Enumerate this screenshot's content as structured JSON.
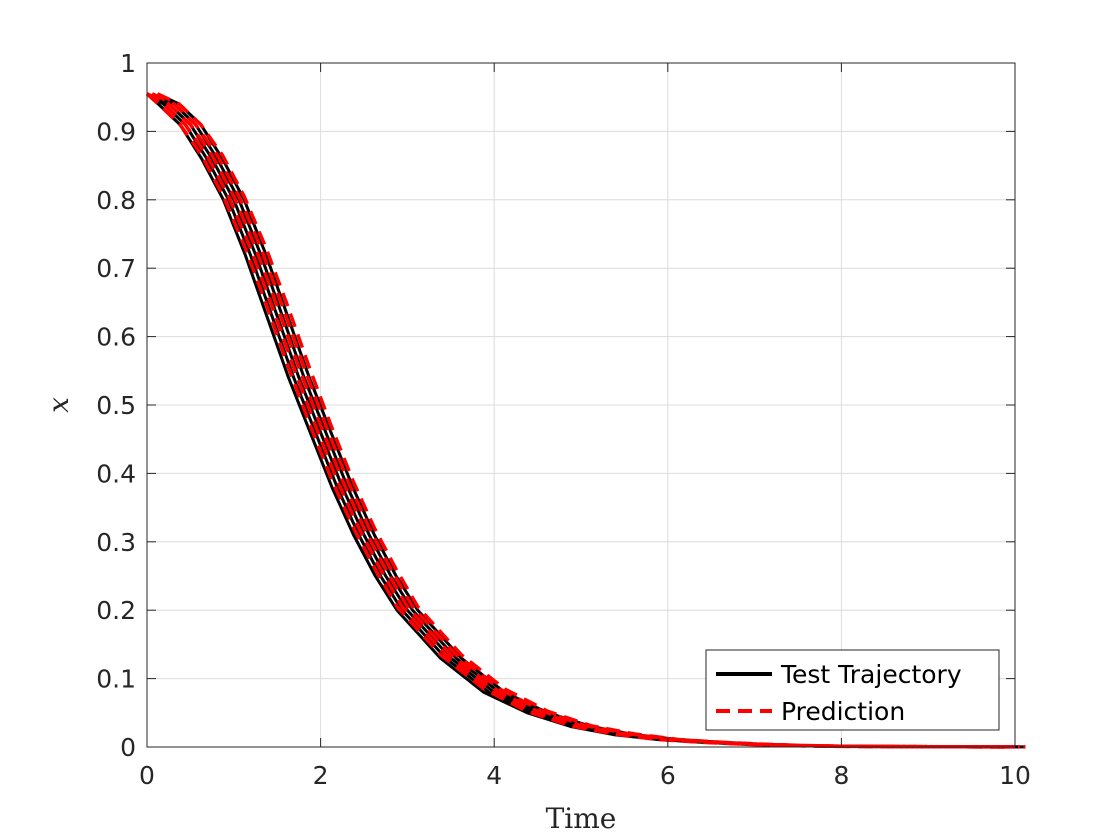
{
  "chart_data": {
    "type": "line",
    "xlabel": "Time",
    "ylabel": "x",
    "xlim": [
      0,
      10
    ],
    "ylim": [
      0,
      1
    ],
    "xticks": [
      "0",
      "2",
      "4",
      "6",
      "8",
      "10"
    ],
    "yticks": [
      "0",
      "0.1",
      "0.2",
      "0.3",
      "0.4",
      "0.5",
      "0.6",
      "0.7",
      "0.8",
      "0.9",
      "1"
    ],
    "grid": true,
    "legend_position": "bottom-right",
    "series": [
      {
        "name": "Test Trajectory",
        "color": "#000000",
        "line_style": "solid",
        "x": [
          0,
          0.25,
          0.5,
          0.75,
          1.0,
          1.25,
          1.5,
          1.75,
          2.0,
          2.25,
          2.5,
          2.75,
          3.0,
          3.5,
          4.0,
          4.5,
          5.0,
          5.5,
          6.0,
          6.5,
          7.0,
          7.5,
          8.0,
          9.0,
          10.0
        ],
        "y": [
          0.955,
          0.94,
          0.91,
          0.86,
          0.8,
          0.72,
          0.63,
          0.54,
          0.46,
          0.38,
          0.31,
          0.25,
          0.2,
          0.13,
          0.08,
          0.05,
          0.03,
          0.018,
          0.011,
          0.007,
          0.004,
          0.002,
          0.001,
          0.0004,
          0.0002
        ]
      },
      {
        "name": "Prediction",
        "color": "#ff0000",
        "line_style": "dashed",
        "x": [
          0,
          0.25,
          0.5,
          0.75,
          1.0,
          1.25,
          1.5,
          1.75,
          2.0,
          2.25,
          2.5,
          2.75,
          3.0,
          3.5,
          4.0,
          4.5,
          5.0,
          5.5,
          6.0,
          6.5,
          7.0,
          7.5,
          8.0,
          9.0,
          10.0
        ],
        "y": [
          0.955,
          0.94,
          0.91,
          0.865,
          0.805,
          0.73,
          0.645,
          0.555,
          0.47,
          0.39,
          0.32,
          0.26,
          0.205,
          0.135,
          0.085,
          0.052,
          0.031,
          0.019,
          0.011,
          0.007,
          0.004,
          0.002,
          0.001,
          0.0004,
          0.0002
        ]
      }
    ]
  }
}
